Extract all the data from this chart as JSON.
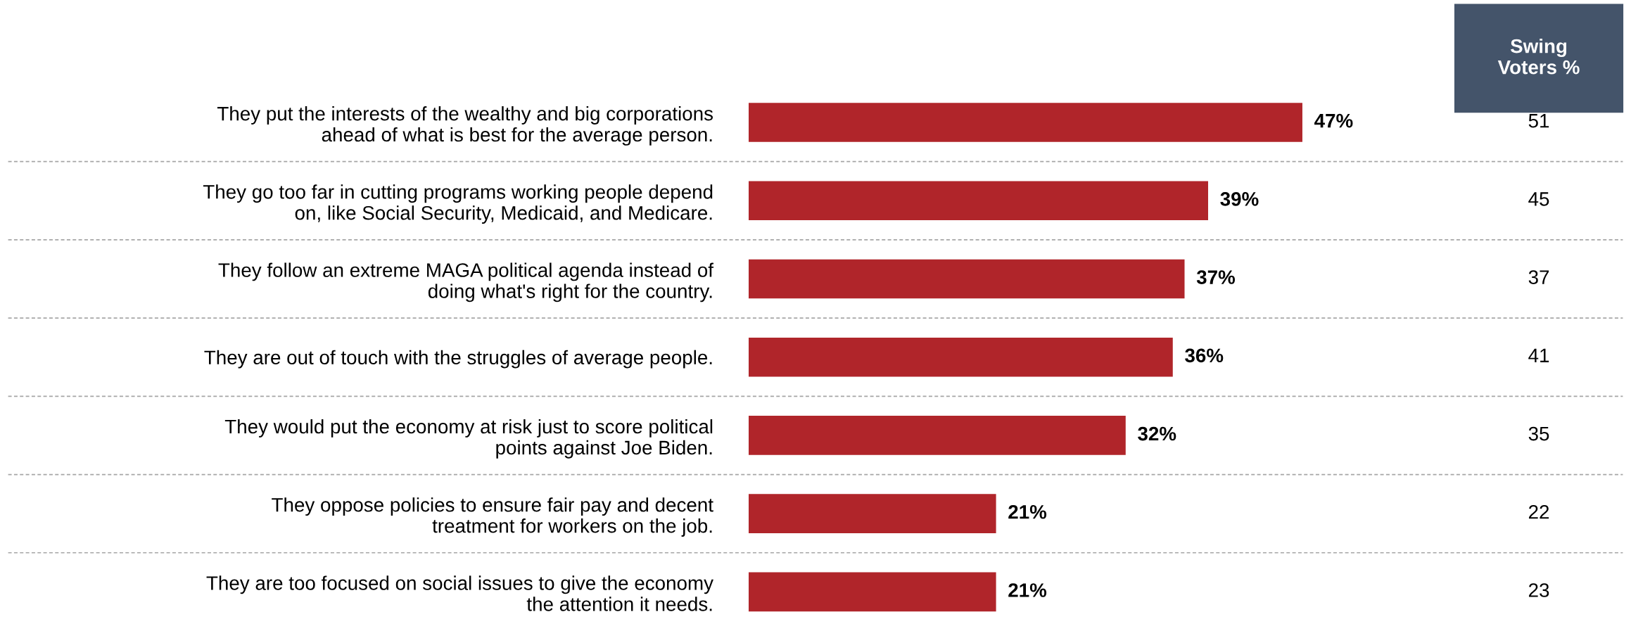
{
  "chart_data": [
    {
      "type": "bar",
      "orientation": "horizontal",
      "categories": [
        "They put the interests of the wealthy and big corporations\nahead of what is best for the average person.",
        "They go too far in cutting programs working people depend\non, like Social Security, Medicaid, and Medicare.",
        "They follow an extreme MAGA political agenda instead of\ndoing what's right for the country.",
        "They are out of touch with the struggles of average people.",
        "They would put the economy at risk just to score political\npoints against Joe Biden.",
        "They oppose policies to ensure fair pay and decent\ntreatment for workers on the job.",
        "They are too focused on social issues to give the economy\nthe attention it needs."
      ],
      "values": [
        47,
        39,
        37,
        36,
        32,
        21,
        21
      ],
      "value_labels": [
        "47%",
        "39%",
        "37%",
        "36%",
        "32%",
        "21%",
        "21%"
      ],
      "color": "#b0252a",
      "tick_labels": "y",
      "grid": false,
      "legend": false
    },
    {
      "type": "other",
      "title": "Swing\nVoters %",
      "values": [
        51,
        45,
        37,
        41,
        35,
        22,
        23
      ],
      "data_labels": true
    }
  ]
}
